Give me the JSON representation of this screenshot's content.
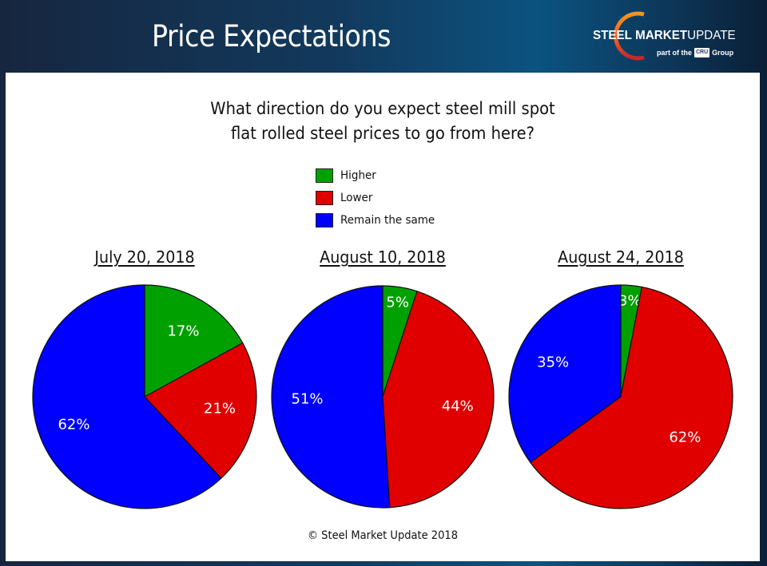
{
  "header": {
    "title": "Price Expectations",
    "logo": {
      "brand_bold_1": "STEEL",
      "brand_bold_2": "MARKET",
      "brand_light": "UPDATE",
      "sub_prefix": "part of the",
      "sub_box": "CRU",
      "sub_suffix": "Group"
    }
  },
  "colors": {
    "higher": "#00a000",
    "lower": "#e00000",
    "same": "#0000ff"
  },
  "footer": "© Steel Market Update 2018",
  "chart_data": {
    "type": "pie",
    "title": "What direction do you expect steel mill spot flat rolled steel prices to go from here?",
    "title_lines": [
      "What direction do you expect steel mill spot",
      "flat rolled steel prices to go from here?"
    ],
    "legend": {
      "placement": "top-center",
      "entries": [
        {
          "key": "higher",
          "label": "Higher"
        },
        {
          "key": "lower",
          "label": "Lower"
        },
        {
          "key": "same",
          "label": "Remain the same"
        }
      ]
    },
    "charts": [
      {
        "title": "July 20, 2018",
        "slices": [
          {
            "key": "higher",
            "label": "Higher",
            "value": 17,
            "text": "17%"
          },
          {
            "key": "lower",
            "label": "Lower",
            "value": 21,
            "text": "21%"
          },
          {
            "key": "same",
            "label": "Remain the same",
            "value": 62,
            "text": "62%"
          }
        ]
      },
      {
        "title": "August 10, 2018",
        "slices": [
          {
            "key": "higher",
            "label": "Higher",
            "value": 5,
            "text": "5%"
          },
          {
            "key": "lower",
            "label": "Lower",
            "value": 44,
            "text": "44%"
          },
          {
            "key": "same",
            "label": "Remain the same",
            "value": 51,
            "text": "51%"
          }
        ]
      },
      {
        "title": "August 24, 2018",
        "slices": [
          {
            "key": "higher",
            "label": "Higher",
            "value": 3,
            "text": "3%"
          },
          {
            "key": "lower",
            "label": "Lower",
            "value": 62,
            "text": "62%"
          },
          {
            "key": "same",
            "label": "Remain the same",
            "value": 35,
            "text": "35%"
          }
        ]
      }
    ]
  }
}
